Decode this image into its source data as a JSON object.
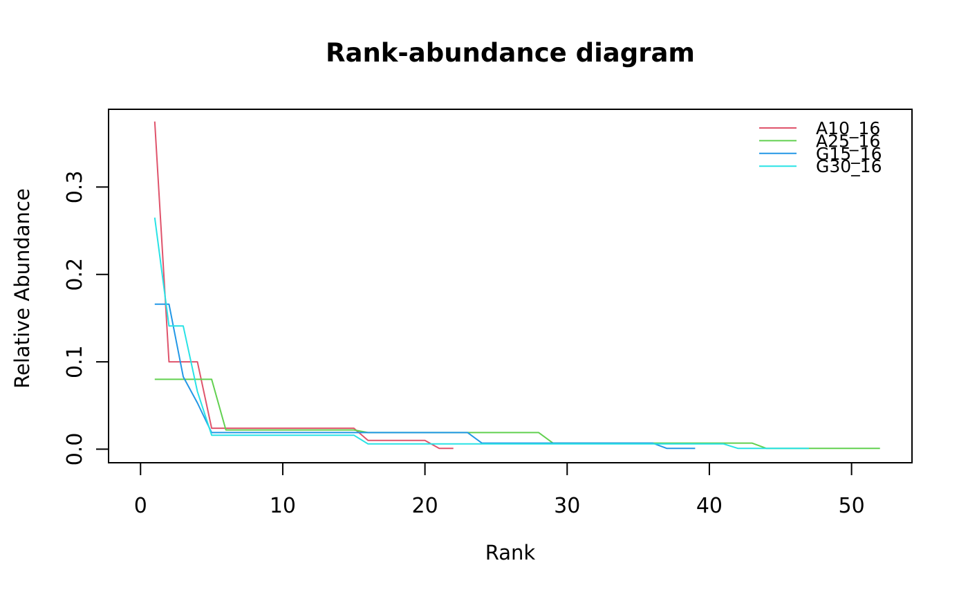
{
  "title": "Rank-abundance diagram",
  "chart_data": {
    "type": "line",
    "title": "Rank-abundance diagram",
    "xlabel": "Rank",
    "ylabel": "Relative Abundance",
    "xlim": [
      -2.25,
      54.25
    ],
    "ylim": [
      -0.0155,
      0.389
    ],
    "grid": false,
    "legend_position": "top-right-inside",
    "x_ticks": [
      {
        "v": 0,
        "label": "0"
      },
      {
        "v": 10,
        "label": "10"
      },
      {
        "v": 20,
        "label": "20"
      },
      {
        "v": 30,
        "label": "30"
      },
      {
        "v": 40,
        "label": "40"
      },
      {
        "v": 50,
        "label": "50"
      }
    ],
    "y_ticks": [
      {
        "v": 0.0,
        "label": "0.0"
      },
      {
        "v": 0.1,
        "label": "0.1"
      },
      {
        "v": 0.2,
        "label": "0.2"
      },
      {
        "v": 0.3,
        "label": "0.3"
      }
    ],
    "series": [
      {
        "name": "A10_16",
        "color": "#DF536B",
        "points": [
          [
            1,
            0.375
          ],
          [
            2,
            0.1
          ],
          [
            3,
            0.1
          ],
          [
            4,
            0.1
          ],
          [
            5,
            0.024
          ],
          [
            6,
            0.024
          ],
          [
            7,
            0.024
          ],
          [
            8,
            0.024
          ],
          [
            9,
            0.024
          ],
          [
            10,
            0.024
          ],
          [
            11,
            0.024
          ],
          [
            12,
            0.024
          ],
          [
            13,
            0.024
          ],
          [
            14,
            0.024
          ],
          [
            15,
            0.024
          ],
          [
            16,
            0.01
          ],
          [
            17,
            0.01
          ],
          [
            18,
            0.01
          ],
          [
            19,
            0.01
          ],
          [
            20,
            0.01
          ],
          [
            21,
            0.001
          ],
          [
            22,
            0.001
          ]
        ]
      },
      {
        "name": "A25_16",
        "color": "#61D04F",
        "points": [
          [
            1,
            0.08
          ],
          [
            2,
            0.08
          ],
          [
            3,
            0.08
          ],
          [
            4,
            0.08
          ],
          [
            5,
            0.08
          ],
          [
            6,
            0.022
          ],
          [
            7,
            0.022
          ],
          [
            8,
            0.022
          ],
          [
            9,
            0.022
          ],
          [
            10,
            0.022
          ],
          [
            11,
            0.022
          ],
          [
            12,
            0.022
          ],
          [
            13,
            0.022
          ],
          [
            14,
            0.022
          ],
          [
            15,
            0.022
          ],
          [
            16,
            0.019
          ],
          [
            17,
            0.019
          ],
          [
            18,
            0.019
          ],
          [
            19,
            0.019
          ],
          [
            20,
            0.019
          ],
          [
            21,
            0.019
          ],
          [
            22,
            0.019
          ],
          [
            23,
            0.019
          ],
          [
            24,
            0.019
          ],
          [
            25,
            0.019
          ],
          [
            26,
            0.019
          ],
          [
            27,
            0.019
          ],
          [
            28,
            0.019
          ],
          [
            29,
            0.007
          ],
          [
            30,
            0.007
          ],
          [
            31,
            0.007
          ],
          [
            32,
            0.007
          ],
          [
            33,
            0.007
          ],
          [
            34,
            0.007
          ],
          [
            35,
            0.007
          ],
          [
            36,
            0.007
          ],
          [
            37,
            0.007
          ],
          [
            38,
            0.007
          ],
          [
            39,
            0.007
          ],
          [
            40,
            0.007
          ],
          [
            41,
            0.007
          ],
          [
            42,
            0.007
          ],
          [
            43,
            0.007
          ],
          [
            44,
            0.001
          ],
          [
            45,
            0.001
          ],
          [
            46,
            0.001
          ],
          [
            47,
            0.001
          ],
          [
            48,
            0.001
          ],
          [
            49,
            0.001
          ],
          [
            50,
            0.001
          ],
          [
            51,
            0.001
          ],
          [
            52,
            0.001
          ]
        ]
      },
      {
        "name": "G15_16",
        "color": "#2297E6",
        "points": [
          [
            1,
            0.166
          ],
          [
            2,
            0.166
          ],
          [
            3,
            0.083
          ],
          [
            4,
            0.053
          ],
          [
            5,
            0.019
          ],
          [
            6,
            0.019
          ],
          [
            7,
            0.019
          ],
          [
            8,
            0.019
          ],
          [
            9,
            0.019
          ],
          [
            10,
            0.019
          ],
          [
            11,
            0.019
          ],
          [
            12,
            0.019
          ],
          [
            13,
            0.019
          ],
          [
            14,
            0.019
          ],
          [
            15,
            0.019
          ],
          [
            16,
            0.019
          ],
          [
            17,
            0.019
          ],
          [
            18,
            0.019
          ],
          [
            19,
            0.019
          ],
          [
            20,
            0.019
          ],
          [
            21,
            0.019
          ],
          [
            22,
            0.019
          ],
          [
            23,
            0.019
          ],
          [
            24,
            0.007
          ],
          [
            25,
            0.007
          ],
          [
            26,
            0.007
          ],
          [
            27,
            0.007
          ],
          [
            28,
            0.007
          ],
          [
            29,
            0.007
          ],
          [
            30,
            0.007
          ],
          [
            31,
            0.007
          ],
          [
            32,
            0.007
          ],
          [
            33,
            0.007
          ],
          [
            34,
            0.007
          ],
          [
            35,
            0.007
          ],
          [
            36,
            0.007
          ],
          [
            37,
            0.001
          ],
          [
            38,
            0.001
          ],
          [
            39,
            0.001
          ]
        ]
      },
      {
        "name": "G30_16",
        "color": "#28E2E5",
        "points": [
          [
            1,
            0.265
          ],
          [
            2,
            0.141
          ],
          [
            3,
            0.141
          ],
          [
            4,
            0.066
          ],
          [
            5,
            0.016
          ],
          [
            6,
            0.016
          ],
          [
            7,
            0.016
          ],
          [
            8,
            0.016
          ],
          [
            9,
            0.016
          ],
          [
            10,
            0.016
          ],
          [
            11,
            0.016
          ],
          [
            12,
            0.016
          ],
          [
            13,
            0.016
          ],
          [
            14,
            0.016
          ],
          [
            15,
            0.016
          ],
          [
            16,
            0.006
          ],
          [
            17,
            0.006
          ],
          [
            18,
            0.006
          ],
          [
            19,
            0.006
          ],
          [
            20,
            0.006
          ],
          [
            21,
            0.006
          ],
          [
            22,
            0.006
          ],
          [
            23,
            0.006
          ],
          [
            24,
            0.006
          ],
          [
            25,
            0.006
          ],
          [
            26,
            0.006
          ],
          [
            27,
            0.006
          ],
          [
            28,
            0.006
          ],
          [
            29,
            0.006
          ],
          [
            30,
            0.006
          ],
          [
            31,
            0.006
          ],
          [
            32,
            0.006
          ],
          [
            33,
            0.006
          ],
          [
            34,
            0.006
          ],
          [
            35,
            0.006
          ],
          [
            36,
            0.006
          ],
          [
            37,
            0.006
          ],
          [
            38,
            0.006
          ],
          [
            39,
            0.006
          ],
          [
            40,
            0.006
          ],
          [
            41,
            0.006
          ],
          [
            42,
            0.001
          ],
          [
            43,
            0.001
          ],
          [
            44,
            0.001
          ],
          [
            45,
            0.001
          ],
          [
            46,
            0.001
          ],
          [
            47,
            0.001
          ]
        ]
      }
    ],
    "legend_labels": [
      "A10_16",
      "A25_16",
      "G15_16",
      "G30_16"
    ]
  }
}
